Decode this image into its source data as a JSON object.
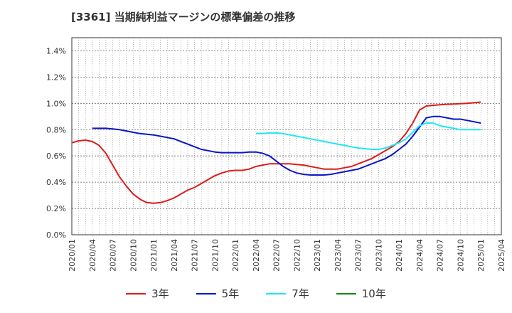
{
  "chart_data": {
    "type": "line",
    "title": "[3361]  当期純利益マージンの標準偏差の推移",
    "xlabel": "",
    "ylabel": "",
    "ylim": [
      0,
      0.015
    ],
    "yticks": [
      0,
      0.002,
      0.004,
      0.006,
      0.008,
      0.01,
      0.012,
      0.014
    ],
    "ytick_labels": [
      "0.0%",
      "0.2%",
      "0.4%",
      "0.6%",
      "0.8%",
      "1.0%",
      "1.2%",
      "1.4%"
    ],
    "xlim": [
      "2020-01",
      "2025-04"
    ],
    "xtick_labels": [
      "2020/01",
      "2020/04",
      "2020/07",
      "2020/10",
      "2021/01",
      "2021/04",
      "2021/07",
      "2021/10",
      "2022/01",
      "2022/04",
      "2022/07",
      "2022/10",
      "2023/01",
      "2023/04",
      "2023/07",
      "2023/10",
      "2024/01",
      "2024/04",
      "2024/07",
      "2024/10",
      "2025/01",
      "2025/04"
    ],
    "grid": true,
    "legend_position": "bottom",
    "series": [
      {
        "name": "3年",
        "color": "#dd1c1c",
        "x": [
          "2020-01",
          "2020-02",
          "2020-03",
          "2020-04",
          "2020-05",
          "2020-06",
          "2020-07",
          "2020-08",
          "2020-09",
          "2020-10",
          "2020-11",
          "2020-12",
          "2021-01",
          "2021-02",
          "2021-03",
          "2021-04",
          "2021-05",
          "2021-06",
          "2021-07",
          "2021-08",
          "2021-09",
          "2021-10",
          "2021-11",
          "2021-12",
          "2022-01",
          "2022-02",
          "2022-03",
          "2022-04",
          "2022-05",
          "2022-06",
          "2022-07",
          "2022-08",
          "2022-09",
          "2022-10",
          "2022-11",
          "2022-12",
          "2023-01",
          "2023-02",
          "2023-03",
          "2023-04",
          "2023-05",
          "2023-06",
          "2023-07",
          "2023-08",
          "2023-09",
          "2023-10",
          "2023-11",
          "2023-12",
          "2024-01",
          "2024-02",
          "2024-03",
          "2024-04",
          "2024-05",
          "2024-06",
          "2024-07",
          "2024-08",
          "2024-09",
          "2024-10",
          "2024-11",
          "2024-12",
          "2025-01"
        ],
        "values": [
          0.007,
          0.00715,
          0.0072,
          0.0071,
          0.0068,
          0.0062,
          0.0053,
          0.0044,
          0.0037,
          0.0031,
          0.0027,
          0.00245,
          0.0024,
          0.00245,
          0.0026,
          0.0028,
          0.0031,
          0.0034,
          0.0036,
          0.0039,
          0.0042,
          0.0045,
          0.0047,
          0.00485,
          0.0049,
          0.0049,
          0.005,
          0.0052,
          0.0053,
          0.0054,
          0.0054,
          0.0054,
          0.0054,
          0.00535,
          0.0053,
          0.0052,
          0.0051,
          0.005,
          0.005,
          0.005,
          0.0051,
          0.0052,
          0.0054,
          0.0056,
          0.0058,
          0.0061,
          0.0064,
          0.0067,
          0.0071,
          0.0077,
          0.0085,
          0.0095,
          0.0098,
          0.00985,
          0.0099,
          0.00993,
          0.00995,
          0.00998,
          0.01,
          0.01005,
          0.0101
        ]
      },
      {
        "name": "5年",
        "color": "#0a14c8",
        "x": [
          "2020-04",
          "2020-05",
          "2020-06",
          "2020-07",
          "2020-08",
          "2020-09",
          "2020-10",
          "2020-11",
          "2020-12",
          "2021-01",
          "2021-02",
          "2021-03",
          "2021-04",
          "2021-05",
          "2021-06",
          "2021-07",
          "2021-08",
          "2021-09",
          "2021-10",
          "2021-11",
          "2021-12",
          "2022-01",
          "2022-02",
          "2022-03",
          "2022-04",
          "2022-05",
          "2022-06",
          "2022-07",
          "2022-08",
          "2022-09",
          "2022-10",
          "2022-11",
          "2022-12",
          "2023-01",
          "2023-02",
          "2023-03",
          "2023-04",
          "2023-05",
          "2023-06",
          "2023-07",
          "2023-08",
          "2023-09",
          "2023-10",
          "2023-11",
          "2023-12",
          "2024-01",
          "2024-02",
          "2024-03",
          "2024-04",
          "2024-05",
          "2024-06",
          "2024-07",
          "2024-08",
          "2024-09",
          "2024-10",
          "2024-11",
          "2024-12",
          "2025-01"
        ],
        "values": [
          0.0081,
          0.0081,
          0.0081,
          0.00805,
          0.008,
          0.0079,
          0.0078,
          0.0077,
          0.00765,
          0.0076,
          0.0075,
          0.0074,
          0.0073,
          0.0071,
          0.0069,
          0.0067,
          0.0065,
          0.0064,
          0.0063,
          0.00625,
          0.00625,
          0.00625,
          0.00625,
          0.0063,
          0.0063,
          0.0062,
          0.006,
          0.0056,
          0.0052,
          0.0049,
          0.0047,
          0.0046,
          0.00455,
          0.00455,
          0.00455,
          0.0046,
          0.0047,
          0.0048,
          0.0049,
          0.005,
          0.0052,
          0.0054,
          0.0056,
          0.0058,
          0.0061,
          0.0065,
          0.0069,
          0.0075,
          0.0082,
          0.0089,
          0.009,
          0.009,
          0.0089,
          0.0088,
          0.0088,
          0.0087,
          0.0086,
          0.0085
        ]
      },
      {
        "name": "7年",
        "color": "#1ee8f0",
        "x": [
          "2022-04",
          "2022-05",
          "2022-06",
          "2022-07",
          "2022-08",
          "2022-09",
          "2022-10",
          "2022-11",
          "2022-12",
          "2023-01",
          "2023-02",
          "2023-03",
          "2023-04",
          "2023-05",
          "2023-06",
          "2023-07",
          "2023-08",
          "2023-09",
          "2023-10",
          "2023-11",
          "2023-12",
          "2024-01",
          "2024-02",
          "2024-03",
          "2024-04",
          "2024-05",
          "2024-06",
          "2024-07",
          "2024-08",
          "2024-09",
          "2024-10",
          "2024-11",
          "2024-12",
          "2025-01"
        ],
        "values": [
          0.0077,
          0.0077,
          0.00775,
          0.00775,
          0.0077,
          0.0076,
          0.0075,
          0.0074,
          0.0073,
          0.0072,
          0.0071,
          0.007,
          0.0069,
          0.0068,
          0.0067,
          0.0066,
          0.00655,
          0.0065,
          0.0065,
          0.0066,
          0.0068,
          0.007,
          0.0073,
          0.0078,
          0.0083,
          0.0085,
          0.0085,
          0.0083,
          0.0082,
          0.0081,
          0.008,
          0.008,
          0.008,
          0.008
        ]
      },
      {
        "name": "10年",
        "color": "#138a13",
        "x": [],
        "values": []
      }
    ]
  }
}
